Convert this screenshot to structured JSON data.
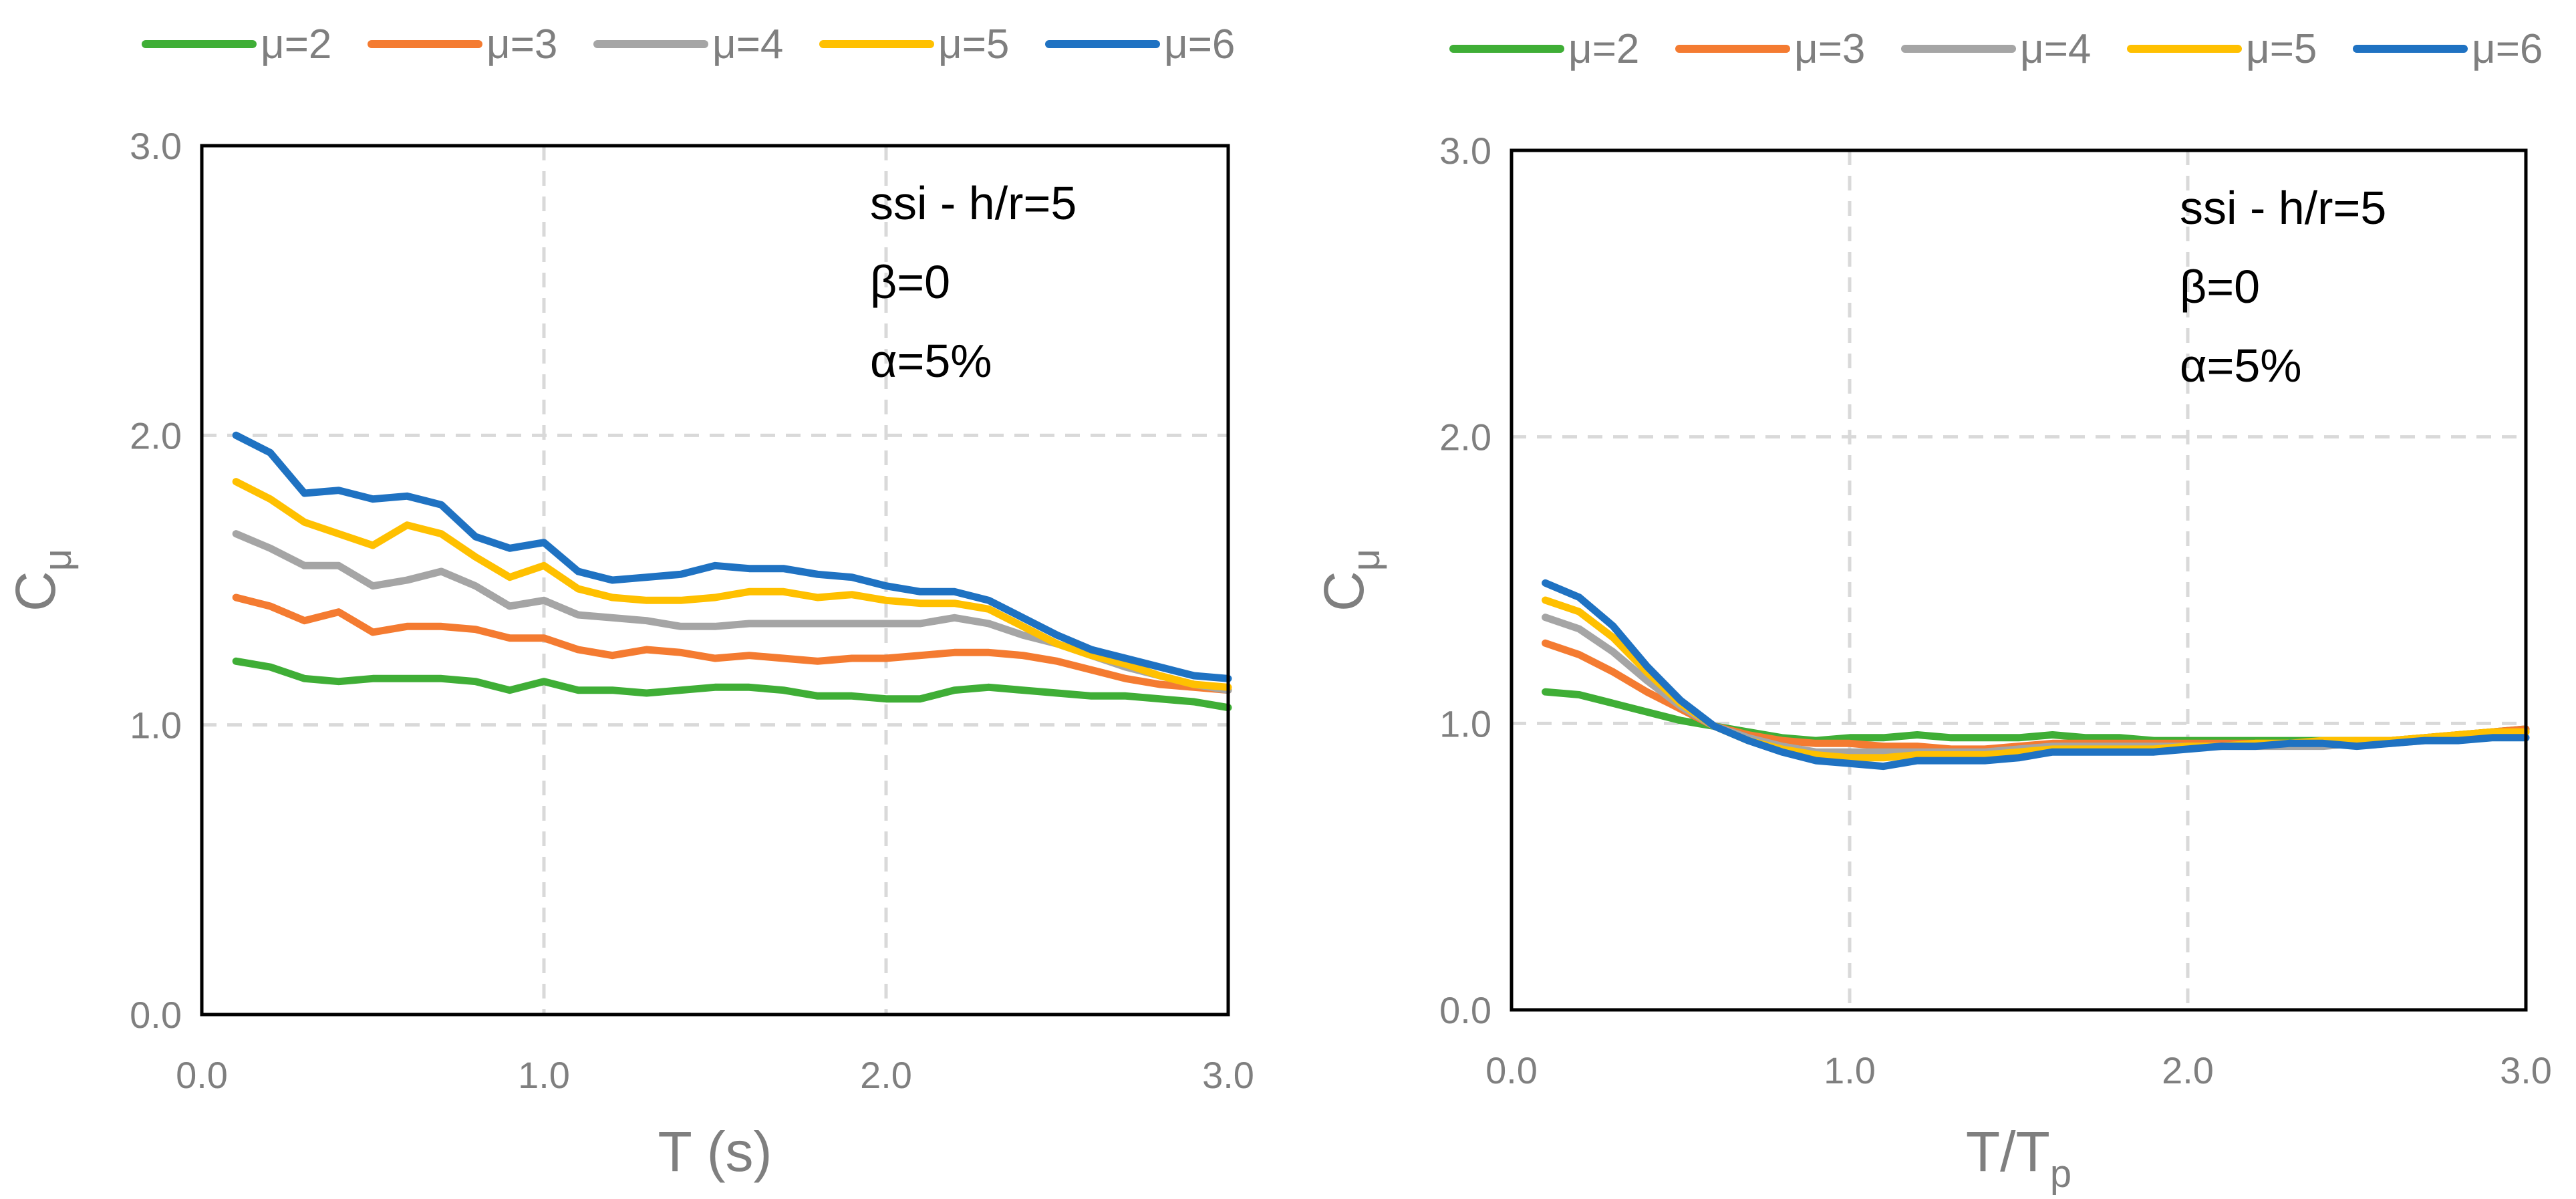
{
  "chart_data": [
    {
      "type": "line",
      "xlabel": "T (s)",
      "xlabel_sub": "",
      "ylabel": "C",
      "ylabel_sub": "μ",
      "xlim": [
        0,
        3
      ],
      "ylim": [
        0,
        3
      ],
      "xticks": [
        "0.0",
        "1.0",
        "2.0",
        "3.0"
      ],
      "yticks": [
        "0.0",
        "1.0",
        "2.0",
        "3.0"
      ],
      "grid": true,
      "legend_position": "top",
      "annotation": [
        "ssi - h/r=5",
        "β=0",
        "α=5%"
      ],
      "x": [
        0.1,
        0.2,
        0.3,
        0.4,
        0.5,
        0.6,
        0.7,
        0.8,
        0.9,
        1.0,
        1.1,
        1.2,
        1.3,
        1.4,
        1.5,
        1.6,
        1.7,
        1.8,
        1.9,
        2.0,
        2.1,
        2.2,
        2.3,
        2.4,
        2.5,
        2.6,
        2.7,
        2.8,
        2.9,
        3.0
      ],
      "series": [
        {
          "name": "μ=2",
          "color": "#3fae36",
          "values": [
            1.22,
            1.2,
            1.16,
            1.15,
            1.16,
            1.16,
            1.16,
            1.15,
            1.12,
            1.15,
            1.12,
            1.12,
            1.11,
            1.12,
            1.13,
            1.13,
            1.12,
            1.1,
            1.1,
            1.09,
            1.09,
            1.12,
            1.13,
            1.12,
            1.11,
            1.1,
            1.1,
            1.09,
            1.08,
            1.06
          ]
        },
        {
          "name": "μ=3",
          "color": "#f47b31",
          "values": [
            1.44,
            1.41,
            1.36,
            1.39,
            1.32,
            1.34,
            1.34,
            1.33,
            1.3,
            1.3,
            1.26,
            1.24,
            1.26,
            1.25,
            1.23,
            1.24,
            1.23,
            1.22,
            1.23,
            1.23,
            1.24,
            1.25,
            1.25,
            1.24,
            1.22,
            1.19,
            1.16,
            1.14,
            1.13,
            1.12
          ]
        },
        {
          "name": "μ=4",
          "color": "#a5a5a5",
          "values": [
            1.66,
            1.61,
            1.55,
            1.55,
            1.48,
            1.5,
            1.53,
            1.48,
            1.41,
            1.43,
            1.38,
            1.37,
            1.36,
            1.34,
            1.34,
            1.35,
            1.35,
            1.35,
            1.35,
            1.35,
            1.35,
            1.37,
            1.35,
            1.31,
            1.28,
            1.24,
            1.2,
            1.17,
            1.14,
            1.12
          ]
        },
        {
          "name": "μ=5",
          "color": "#ffc000",
          "values": [
            1.84,
            1.78,
            1.7,
            1.66,
            1.62,
            1.69,
            1.66,
            1.58,
            1.51,
            1.55,
            1.47,
            1.44,
            1.43,
            1.43,
            1.44,
            1.46,
            1.46,
            1.44,
            1.45,
            1.43,
            1.42,
            1.42,
            1.4,
            1.34,
            1.28,
            1.24,
            1.21,
            1.17,
            1.14,
            1.13
          ]
        },
        {
          "name": "μ=6",
          "color": "#1f72c2",
          "values": [
            2.0,
            1.94,
            1.8,
            1.81,
            1.78,
            1.79,
            1.76,
            1.65,
            1.61,
            1.63,
            1.53,
            1.5,
            1.51,
            1.52,
            1.55,
            1.54,
            1.54,
            1.52,
            1.51,
            1.48,
            1.46,
            1.46,
            1.43,
            1.37,
            1.31,
            1.26,
            1.23,
            1.2,
            1.17,
            1.16
          ]
        }
      ]
    },
    {
      "type": "line",
      "xlabel": "T/T",
      "xlabel_sub": "p",
      "ylabel": "C",
      "ylabel_sub": "μ",
      "xlim": [
        0,
        3
      ],
      "ylim": [
        0,
        3
      ],
      "xticks": [
        "0.0",
        "1.0",
        "2.0",
        "3.0"
      ],
      "yticks": [
        "0.0",
        "1.0",
        "2.0",
        "3.0"
      ],
      "grid": true,
      "legend_position": "top",
      "annotation": [
        "ssi - h/r=5",
        "β=0",
        "α=5%"
      ],
      "x": [
        0.1,
        0.2,
        0.3,
        0.4,
        0.5,
        0.6,
        0.7,
        0.8,
        0.9,
        1.0,
        1.1,
        1.2,
        1.3,
        1.4,
        1.5,
        1.6,
        1.7,
        1.8,
        1.9,
        2.0,
        2.1,
        2.2,
        2.3,
        2.4,
        2.5,
        2.6,
        2.7,
        2.8,
        2.9,
        3.0
      ],
      "series": [
        {
          "name": "μ=2",
          "color": "#3fae36",
          "values": [
            1.11,
            1.1,
            1.07,
            1.04,
            1.01,
            0.99,
            0.97,
            0.95,
            0.94,
            0.95,
            0.95,
            0.96,
            0.95,
            0.95,
            0.95,
            0.96,
            0.95,
            0.95,
            0.94,
            0.94,
            0.94,
            0.94,
            0.94,
            0.94,
            0.94,
            0.94,
            0.95,
            0.96,
            0.97,
            0.98
          ]
        },
        {
          "name": "μ=3",
          "color": "#f47b31",
          "values": [
            1.28,
            1.24,
            1.18,
            1.11,
            1.05,
            0.99,
            0.96,
            0.94,
            0.93,
            0.93,
            0.92,
            0.92,
            0.91,
            0.91,
            0.92,
            0.93,
            0.93,
            0.93,
            0.93,
            0.93,
            0.93,
            0.93,
            0.93,
            0.93,
            0.94,
            0.94,
            0.95,
            0.96,
            0.97,
            0.98
          ]
        },
        {
          "name": "μ=4",
          "color": "#a5a5a5",
          "values": [
            1.37,
            1.33,
            1.25,
            1.15,
            1.06,
            0.99,
            0.95,
            0.92,
            0.9,
            0.9,
            0.9,
            0.9,
            0.9,
            0.9,
            0.91,
            0.92,
            0.92,
            0.92,
            0.92,
            0.92,
            0.92,
            0.92,
            0.92,
            0.92,
            0.93,
            0.93,
            0.94,
            0.95,
            0.96,
            0.97
          ]
        },
        {
          "name": "μ=5",
          "color": "#ffc000",
          "values": [
            1.43,
            1.39,
            1.3,
            1.18,
            1.07,
            0.99,
            0.94,
            0.91,
            0.89,
            0.88,
            0.88,
            0.89,
            0.89,
            0.89,
            0.9,
            0.91,
            0.91,
            0.91,
            0.91,
            0.92,
            0.92,
            0.93,
            0.93,
            0.94,
            0.94,
            0.94,
            0.95,
            0.96,
            0.97,
            0.97
          ]
        },
        {
          "name": "μ=6",
          "color": "#1f72c2",
          "values": [
            1.49,
            1.44,
            1.34,
            1.2,
            1.08,
            0.99,
            0.94,
            0.9,
            0.87,
            0.86,
            0.85,
            0.87,
            0.87,
            0.87,
            0.88,
            0.9,
            0.9,
            0.9,
            0.9,
            0.91,
            0.92,
            0.92,
            0.93,
            0.93,
            0.92,
            0.93,
            0.94,
            0.94,
            0.95,
            0.95
          ]
        }
      ]
    }
  ]
}
